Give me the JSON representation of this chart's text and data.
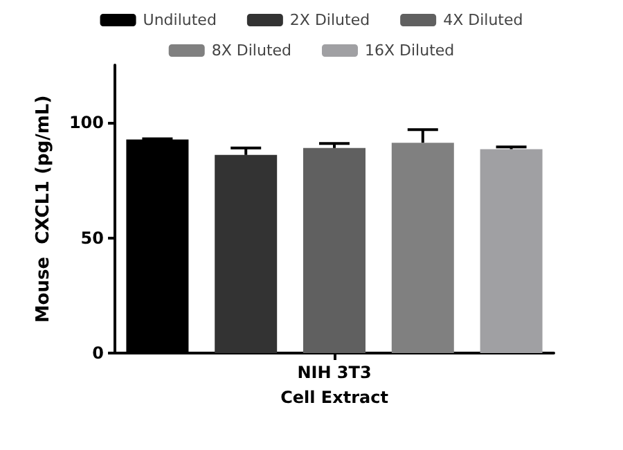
{
  "chart_data": {
    "type": "bar",
    "ylabel": "Mouse  CXCL1 (pg/mL)",
    "xlabel": "Cell Extract",
    "categories": [
      "NIH 3T3"
    ],
    "series": [
      {
        "name": "Undiluted",
        "color": "#000000",
        "values": [
          92.7
        ],
        "errors": [
          [
            92.7,
            93
          ]
        ]
      },
      {
        "name": "2X Diluted",
        "color": "#333333",
        "values": [
          86
        ],
        "errors": [
          [
            86,
            89
          ]
        ]
      },
      {
        "name": "4X Diluted",
        "color": "#606060",
        "values": [
          89
        ],
        "errors": [
          [
            89,
            91
          ]
        ]
      },
      {
        "name": "8X Diluted",
        "color": "#808080",
        "values": [
          91.3
        ],
        "errors": [
          [
            91.3,
            97
          ]
        ]
      },
      {
        "name": "16X Diluted",
        "color": "#a0a0a3",
        "values": [
          88.5
        ],
        "errors": [
          [
            88.5,
            89.5
          ]
        ]
      }
    ],
    "ylim": [
      0,
      125
    ],
    "yticks": [
      0,
      50,
      100
    ],
    "grid": false,
    "legend": "top"
  }
}
